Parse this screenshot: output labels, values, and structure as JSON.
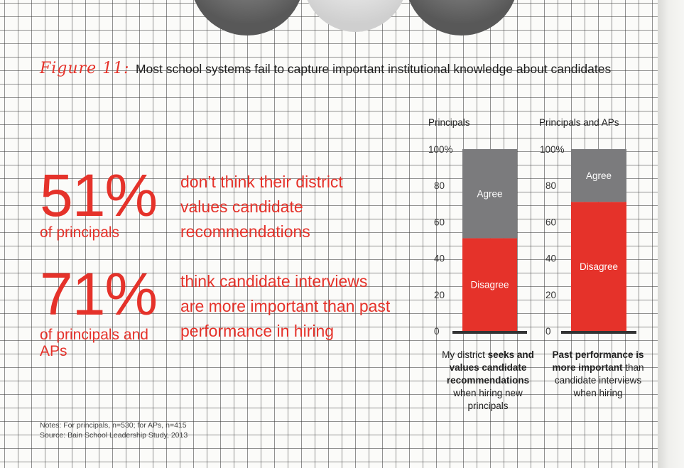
{
  "figure": {
    "label": "Figure 11:",
    "title": "Most school systems fail to capture important institutional knowledge about candidates"
  },
  "stats": [
    {
      "value": "51%",
      "subject": "of principals",
      "description": "don’t think their district values candidate recommendations"
    },
    {
      "value": "71%",
      "subject": "of principals and APs",
      "description": "think candidate interviews are more important than past performance in hiring"
    }
  ],
  "notes": {
    "line1": "Notes: For principals, n=530; for APs, n=415",
    "line2": "Source: Bain School Leadership Study, 2013"
  },
  "captions": [
    {
      "parts": [
        {
          "text": "My district ",
          "bold": false
        },
        {
          "text": "seeks and values candidate recommendations",
          "bold": true
        },
        {
          "text": " when hiring new principals",
          "bold": false
        }
      ]
    },
    {
      "parts": [
        {
          "text": "Past performance is more important",
          "bold": true
        },
        {
          "text": " than candidate interviews when hiring",
          "bold": false
        }
      ]
    }
  ],
  "colors": {
    "agree": "#7b7b7d",
    "disagree": "#e5322a",
    "accent": "#e5322a",
    "baseline": "#333333"
  },
  "chart_data": [
    {
      "type": "bar",
      "stacked": true,
      "title": "Principals",
      "yticks": [
        "100%",
        "80",
        "60",
        "40",
        "20",
        "0"
      ],
      "ylim": [
        0,
        100
      ],
      "series": [
        {
          "name": "Disagree",
          "values": [
            51
          ]
        },
        {
          "name": "Agree",
          "values": [
            49
          ]
        }
      ]
    },
    {
      "type": "bar",
      "stacked": true,
      "title": "Principals and APs",
      "yticks": [
        "100%",
        "80",
        "60",
        "40",
        "20",
        "0"
      ],
      "ylim": [
        0,
        100
      ],
      "series": [
        {
          "name": "Disagree",
          "values": [
            71
          ]
        },
        {
          "name": "Agree",
          "values": [
            29
          ]
        }
      ]
    }
  ]
}
